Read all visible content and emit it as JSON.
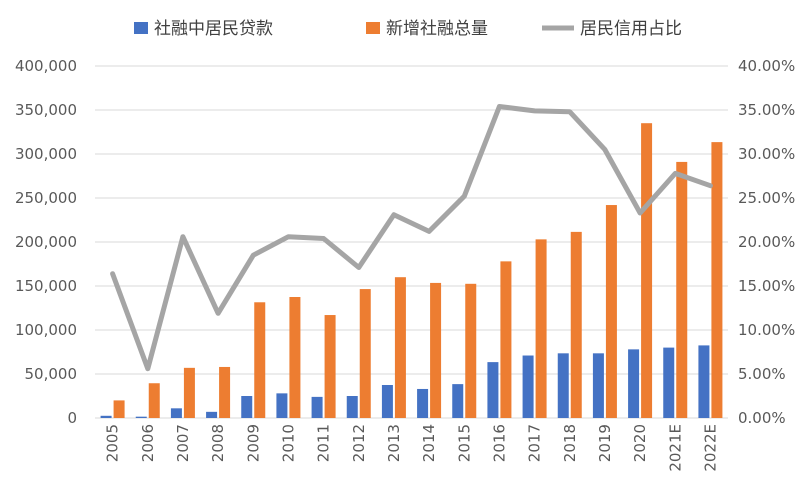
{
  "chart_data": {
    "type": "bar",
    "categories": [
      "2005",
      "2006",
      "2007",
      "2008",
      "2009",
      "2010",
      "2011",
      "2012",
      "2013",
      "2014",
      "2015",
      "2016",
      "2017",
      "2018",
      "2019",
      "2020",
      "2021E",
      "2022E"
    ],
    "series": [
      {
        "name": "社融中居民贷款",
        "type": "bar",
        "axis": "left",
        "color": "#4472c4",
        "values": [
          2500,
          1500,
          11000,
          7000,
          25000,
          28000,
          24000,
          25000,
          37500,
          33000,
          38500,
          63500,
          71000,
          73500,
          73500,
          78000,
          80000,
          82500
        ]
      },
      {
        "name": "新增社融总量",
        "type": "bar",
        "axis": "left",
        "color": "#ed7d31",
        "values": [
          20000,
          39500,
          57000,
          58000,
          131500,
          137500,
          117000,
          146500,
          160000,
          153500,
          152500,
          178000,
          203000,
          211500,
          242000,
          335000,
          291000,
          313500
        ]
      },
      {
        "name": "居民信用占比",
        "type": "line",
        "axis": "right",
        "color": "#a5a5a5",
        "values": [
          0.164,
          0.056,
          0.206,
          0.119,
          0.185,
          0.206,
          0.204,
          0.171,
          0.231,
          0.212,
          0.252,
          0.354,
          0.349,
          0.348,
          0.305,
          0.233,
          0.278,
          0.264
        ]
      }
    ],
    "y_left": {
      "min": 0,
      "max": 400000,
      "ticks": [
        "0",
        "50,000",
        "100,000",
        "150,000",
        "200,000",
        "250,000",
        "300,000",
        "350,000",
        "400,000"
      ]
    },
    "y_right": {
      "min": 0,
      "max": 0.4,
      "ticks": [
        "0.00%",
        "5.00%",
        "10.00%",
        "15.00%",
        "20.00%",
        "25.00%",
        "30.00%",
        "35.00%",
        "40.00%"
      ]
    },
    "grid": true,
    "legend": "top"
  }
}
